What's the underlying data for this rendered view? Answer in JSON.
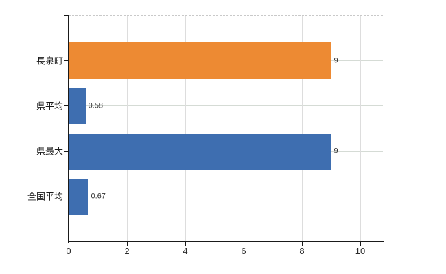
{
  "colors": {
    "background": "#FFFFFF",
    "orange_bar": "#ED8A33",
    "blue_bar": "#3E6EB0",
    "axis": "#1A1A1A",
    "gridline_vertical": "#DDDDDD",
    "gridline_horizontal": "#D5DBD5",
    "top_border_dashed": "#C9C9C9",
    "value_label_text": "#333333",
    "category_label_text": "#1A1A1A",
    "tick_label_text": "#2B2B2B"
  },
  "chart_data": {
    "type": "bar",
    "orientation": "horizontal",
    "title": "",
    "xlabel": "",
    "ylabel": "",
    "categories": [
      "長泉町",
      "県平均",
      "県最大",
      "全国平均"
    ],
    "values": [
      9,
      0.58,
      9,
      0.67
    ],
    "value_labels": [
      "9",
      "0.58",
      "9",
      "0.67"
    ],
    "bar_colors": [
      "#ED8A33",
      "#3E6EB0",
      "#3E6EB0",
      "#3E6EB0"
    ],
    "x_ticks": [
      0,
      2,
      4,
      6,
      8,
      10
    ],
    "x_tick_labels": [
      "0",
      "2",
      "4",
      "6",
      "8",
      "10"
    ],
    "xlim": [
      0,
      10.8
    ],
    "grid": "vertical-at-ticks and horizontal-at-category-centers",
    "plot_top_border": "dashed",
    "legend_position": "none"
  }
}
